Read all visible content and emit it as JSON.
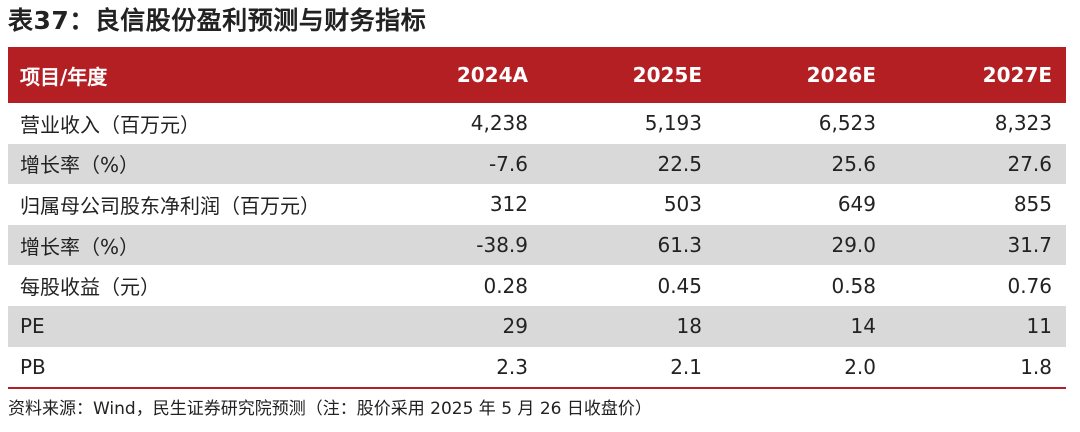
{
  "title": "表37：良信股份盈利预测与财务指标",
  "table": {
    "headers": [
      "项目/年度",
      "2024A",
      "2025E",
      "2026E",
      "2027E"
    ],
    "rows": [
      {
        "label": "营业收入（百万元）",
        "values": [
          "4,238",
          "5,193",
          "6,523",
          "8,323"
        ]
      },
      {
        "label": "增长率（%）",
        "values": [
          "-7.6",
          "22.5",
          "25.6",
          "27.6"
        ]
      },
      {
        "label": "归属母公司股东净利润（百万元）",
        "values": [
          "312",
          "503",
          "649",
          "855"
        ]
      },
      {
        "label": "增长率（%）",
        "values": [
          "-38.9",
          "61.3",
          "29.0",
          "31.7"
        ]
      },
      {
        "label": "每股收益（元）",
        "values": [
          "0.28",
          "0.45",
          "0.58",
          "0.76"
        ]
      },
      {
        "label": "PE",
        "values": [
          "29",
          "18",
          "14",
          "11"
        ]
      },
      {
        "label": "PB",
        "values": [
          "2.3",
          "2.1",
          "2.0",
          "1.8"
        ]
      }
    ]
  },
  "source": "资料来源：Wind，民生证券研究院预测（注：股价采用 2025 年 5 月 26 日收盘价）",
  "colors": {
    "header_bg": "#b41f24",
    "shade_bg": "#d9d9d9"
  }
}
